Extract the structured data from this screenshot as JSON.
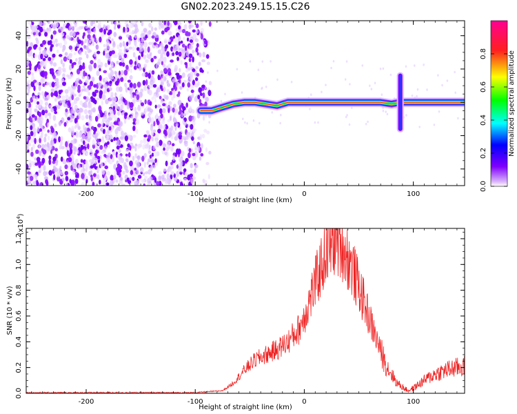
{
  "figure_title": "GN02.2023.249.15.15.C26",
  "colors": {
    "snr_line": "#ee2222",
    "axis": "#000000",
    "background": "#ffffff"
  },
  "chart_data": [
    {
      "type": "heatmap",
      "title": "",
      "xlabel": "Height of straight line (km)",
      "ylabel": "Frequency (Hz)",
      "xlim": [
        -255,
        147
      ],
      "ylim": [
        -50,
        49
      ],
      "x_ticks": [
        -200,
        -100,
        0,
        100
      ],
      "x_tick_labels": [
        "-200",
        "-100",
        "0",
        "100"
      ],
      "y_ticks": [
        -40,
        -20,
        0,
        20,
        40
      ],
      "y_tick_labels": [
        "-40",
        "-20",
        "0",
        "20",
        "40"
      ],
      "colorbar": {
        "label": "Normalized spectral amplitude",
        "range": [
          0,
          1
        ],
        "ticks": [
          0,
          0.2,
          0.4,
          0.6,
          0.8
        ],
        "tick_labels": [
          "0.0",
          "0.2",
          "0.4",
          "0.6",
          "0.8"
        ],
        "colormap": "rainbow (purple-blue-cyan-green-yellow-red-magenta)"
      },
      "features": {
        "noise_region_x": [
          -255,
          -92
        ],
        "track_points": [
          [
            -95,
            -5
          ],
          [
            -85,
            -5
          ],
          [
            -75,
            -3
          ],
          [
            -65,
            -1
          ],
          [
            -55,
            0
          ],
          [
            -45,
            0
          ],
          [
            -35,
            -1
          ],
          [
            -25,
            -2
          ],
          [
            -15,
            0
          ],
          [
            0,
            0
          ],
          [
            20,
            0
          ],
          [
            40,
            0
          ],
          [
            60,
            0
          ],
          [
            70,
            0
          ],
          [
            80,
            -1
          ],
          [
            88,
            0
          ],
          [
            95,
            0
          ],
          [
            120,
            0
          ],
          [
            147,
            0
          ]
        ],
        "disturbance_x": 88
      }
    },
    {
      "type": "line",
      "title": "",
      "xlabel": "Height of straight line (km)",
      "ylabel": "SNR (10 * v/v)",
      "y_multiplier_label": "(x10",
      "y_multiplier_exp": "4",
      "y_multiplier_close": ")",
      "xlim": [
        -255,
        147
      ],
      "ylim": [
        0,
        1.28
      ],
      "x_ticks": [
        -200,
        -100,
        0,
        100
      ],
      "x_tick_labels": [
        "-200",
        "-100",
        "0",
        "100"
      ],
      "y_ticks": [
        0,
        0.2,
        0.4,
        0.6,
        0.8,
        1.0,
        1.2
      ],
      "y_tick_labels": [
        "0.0",
        "0.2",
        "0.4",
        "0.6",
        "0.8",
        "1.0",
        "1.2"
      ],
      "series": [
        {
          "name": "",
          "envelope": {
            "x": [
              -255,
              -100,
              -75,
              -65,
              -55,
              -45,
              -35,
              -25,
              -15,
              -5,
              0,
              10,
              20,
              28,
              35,
              45,
              55,
              65,
              75,
              85,
              95,
              100,
              110,
              120,
              130,
              140,
              147
            ],
            "y": [
              0.005,
              0.005,
              0.02,
              0.08,
              0.18,
              0.26,
              0.3,
              0.34,
              0.4,
              0.5,
              0.6,
              0.85,
              1.1,
              1.2,
              1.15,
              0.95,
              0.7,
              0.45,
              0.22,
              0.08,
              0.02,
              0.04,
              0.1,
              0.15,
              0.18,
              0.2,
              0.21
            ]
          }
        }
      ]
    }
  ]
}
